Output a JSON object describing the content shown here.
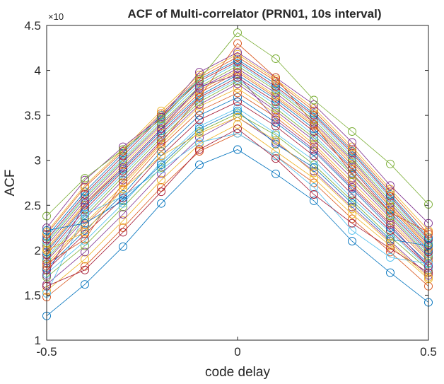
{
  "chart_data": {
    "type": "line",
    "title": "ACF of Multi-correlator (PRN01, 10s interval)",
    "xlabel": "code delay",
    "ylabel": "ACF",
    "y_exponent_label": "×10",
    "xlim": [
      -0.5,
      0.5
    ],
    "ylim": [
      1,
      4.5
    ],
    "xticks": [
      "-0.5",
      "0",
      "0.5"
    ],
    "yticks": [
      "1",
      "1.5",
      "2",
      "2.5",
      "3",
      "3.5",
      "4",
      "4.5"
    ],
    "grid": false,
    "legend": "none",
    "marker": "open-circle",
    "x": [
      -0.5,
      -0.4,
      -0.3,
      -0.2,
      -0.1,
      0,
      0.1,
      0.2,
      0.3,
      0.4,
      0.5
    ],
    "colors": [
      "#0072BD",
      "#D95319",
      "#EDB120",
      "#7E2F8E",
      "#77AC30",
      "#4DBEEE",
      "#A2142F"
    ],
    "series": [
      {
        "values": [
          1.27,
          1.62,
          2.04,
          2.52,
          2.95,
          3.12,
          2.85,
          2.55,
          2.1,
          1.75,
          1.42
        ]
      },
      {
        "values": [
          1.48,
          1.82,
          2.25,
          2.7,
          3.1,
          3.3,
          3.05,
          2.75,
          2.35,
          1.98,
          1.6
        ]
      },
      {
        "values": [
          1.55,
          1.9,
          2.33,
          2.78,
          3.18,
          3.4,
          3.1,
          2.8,
          2.4,
          2.05,
          1.68
        ]
      },
      {
        "values": [
          1.62,
          1.98,
          2.4,
          2.85,
          3.25,
          3.48,
          3.2,
          2.88,
          2.48,
          2.1,
          1.72
        ]
      },
      {
        "values": [
          1.7,
          2.05,
          2.48,
          2.92,
          3.32,
          3.52,
          3.28,
          2.95,
          2.55,
          2.15,
          1.78
        ]
      },
      {
        "values": [
          1.74,
          2.1,
          2.52,
          2.98,
          3.38,
          3.58,
          3.3,
          3.0,
          2.58,
          2.2,
          1.8
        ]
      },
      {
        "values": [
          1.78,
          2.18,
          2.58,
          3.05,
          3.45,
          3.65,
          3.38,
          3.05,
          2.62,
          2.22,
          1.82
        ]
      },
      {
        "values": [
          1.8,
          2.22,
          2.62,
          3.1,
          3.5,
          3.7,
          3.42,
          3.1,
          2.68,
          2.25,
          1.85
        ]
      },
      {
        "values": [
          1.82,
          2.28,
          2.68,
          3.15,
          3.55,
          3.75,
          3.48,
          3.15,
          2.72,
          2.3,
          1.88
        ]
      },
      {
        "values": [
          1.85,
          2.3,
          2.72,
          3.18,
          3.6,
          3.8,
          3.52,
          3.18,
          2.76,
          2.33,
          1.9
        ]
      },
      {
        "values": [
          1.88,
          2.35,
          2.78,
          3.22,
          3.62,
          3.85,
          3.55,
          3.22,
          2.8,
          2.36,
          1.92
        ]
      },
      {
        "values": [
          1.9,
          2.38,
          2.82,
          3.25,
          3.65,
          3.88,
          3.58,
          3.25,
          2.84,
          2.38,
          1.94
        ]
      },
      {
        "values": [
          1.92,
          2.42,
          2.85,
          3.28,
          3.68,
          3.9,
          3.62,
          3.28,
          2.86,
          2.4,
          1.96
        ]
      },
      {
        "values": [
          1.95,
          2.45,
          2.88,
          3.3,
          3.7,
          3.92,
          3.65,
          3.32,
          2.9,
          2.42,
          1.98
        ]
      },
      {
        "values": [
          1.98,
          2.48,
          2.9,
          3.33,
          3.72,
          3.95,
          3.68,
          3.35,
          2.92,
          2.45,
          2.0
        ]
      },
      {
        "values": [
          2.0,
          2.5,
          2.92,
          3.35,
          3.75,
          3.98,
          3.7,
          3.38,
          2.95,
          2.48,
          2.02
        ]
      },
      {
        "values": [
          2.02,
          2.52,
          2.95,
          3.38,
          3.78,
          4.0,
          3.72,
          3.4,
          2.98,
          2.5,
          2.04
        ]
      },
      {
        "values": [
          2.05,
          2.55,
          2.98,
          3.4,
          3.8,
          4.02,
          3.75,
          3.42,
          3.0,
          2.52,
          2.06
        ]
      },
      {
        "values": [
          2.08,
          2.58,
          3.0,
          3.42,
          3.82,
          4.05,
          3.78,
          3.45,
          3.02,
          2.55,
          2.08
        ]
      },
      {
        "values": [
          2.1,
          2.6,
          3.02,
          3.45,
          3.85,
          4.08,
          3.8,
          3.48,
          3.05,
          2.58,
          2.1
        ]
      },
      {
        "values": [
          2.12,
          2.62,
          3.05,
          3.48,
          3.88,
          4.1,
          3.82,
          3.5,
          3.08,
          2.6,
          2.12
        ]
      },
      {
        "values": [
          2.15,
          2.65,
          3.08,
          3.5,
          3.9,
          4.12,
          3.85,
          3.52,
          3.1,
          2.62,
          2.14
        ]
      },
      {
        "values": [
          2.18,
          2.7,
          3.1,
          3.52,
          3.92,
          4.15,
          3.88,
          3.55,
          3.12,
          2.65,
          2.18
        ]
      },
      {
        "values": [
          2.2,
          2.72,
          3.12,
          3.55,
          3.95,
          4.18,
          3.9,
          3.58,
          3.15,
          2.68,
          2.22
        ]
      },
      {
        "values": [
          2.25,
          2.78,
          3.15,
          3.48,
          3.98,
          4.2,
          3.92,
          3.62,
          3.2,
          2.72,
          2.3
        ]
      },
      {
        "values": [
          2.38,
          2.8,
          3.12,
          3.46,
          3.9,
          4.42,
          4.13,
          3.67,
          3.32,
          2.96,
          2.51
        ]
      },
      {
        "values": [
          1.52,
          2.4,
          2.6,
          2.9,
          3.2,
          3.3,
          3.05,
          2.7,
          2.22,
          1.92,
          1.85
        ]
      },
      {
        "values": [
          1.6,
          1.78,
          2.2,
          2.65,
          3.12,
          3.35,
          3.02,
          2.62,
          2.3,
          2.02,
          1.75
        ]
      },
      {
        "values": [
          2.22,
          2.3,
          2.55,
          2.95,
          3.35,
          3.55,
          3.18,
          2.92,
          2.52,
          2.12,
          2.05
        ]
      },
      {
        "values": [
          1.85,
          2.12,
          2.75,
          3.2,
          3.7,
          4.3,
          3.92,
          3.4,
          2.85,
          2.42,
          2.2
        ]
      },
      {
        "values": [
          2.0,
          2.2,
          2.68,
          3.05,
          3.3,
          3.48,
          3.22,
          2.86,
          2.46,
          2.08,
          1.7
        ]
      },
      {
        "values": [
          1.72,
          2.52,
          2.92,
          3.35,
          3.82,
          3.95,
          3.45,
          3.12,
          2.7,
          2.28,
          1.82
        ]
      }
    ]
  }
}
